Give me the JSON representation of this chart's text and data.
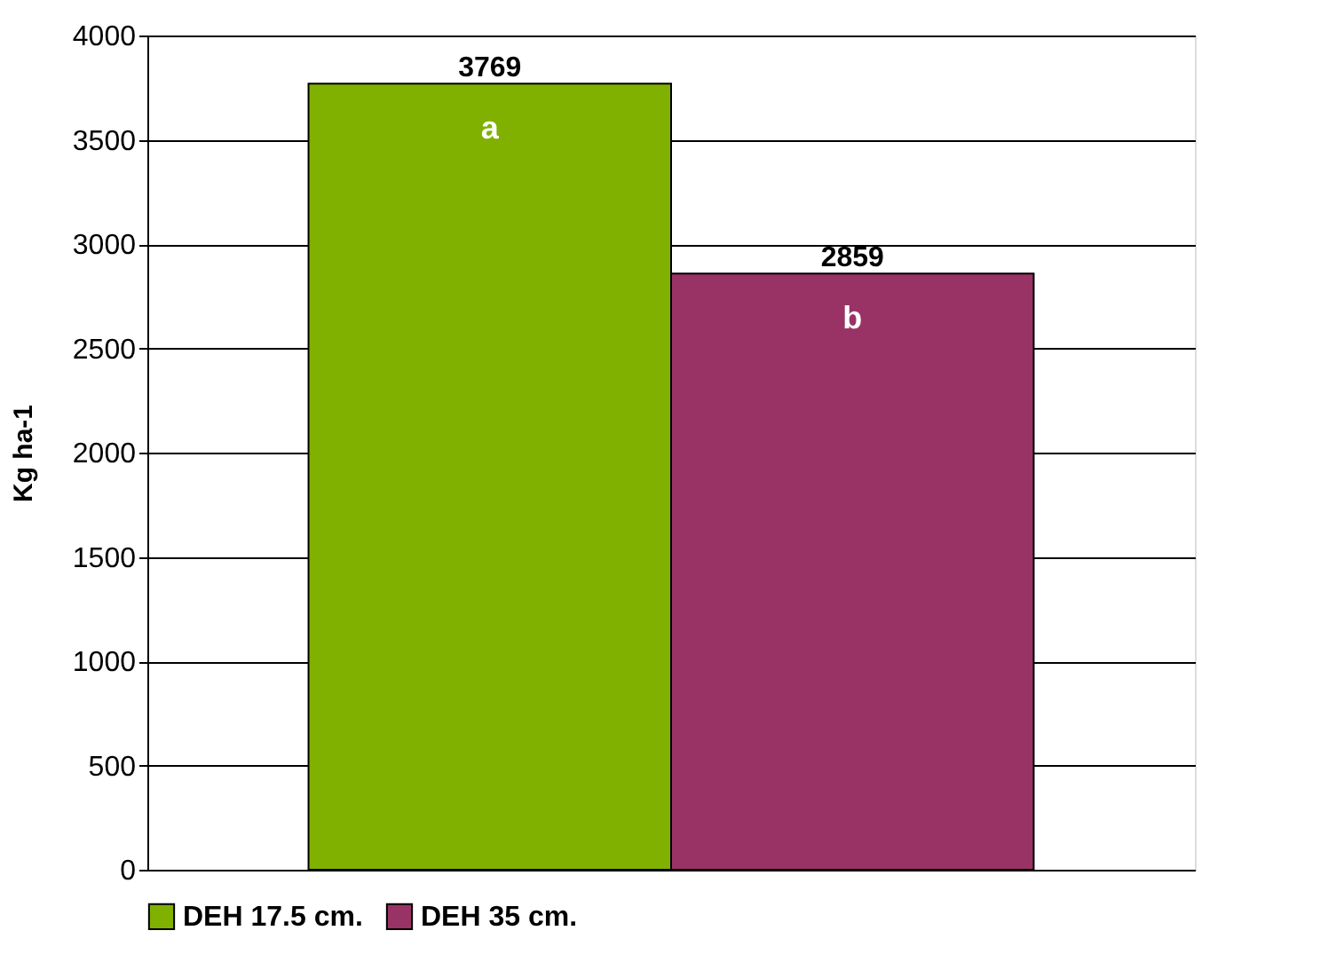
{
  "chart_data": {
    "type": "bar",
    "categories": [
      null
    ],
    "series": [
      {
        "name": "DEH 17.5 cm.",
        "color": "#80b000",
        "values": [
          3769
        ]
      },
      {
        "name": "DEH 35 cm.",
        "color": "#993366",
        "values": [
          2859
        ]
      }
    ],
    "ylabel": "Kg ha-1",
    "ylim": [
      0,
      4000
    ],
    "yticks": [
      0,
      500,
      1000,
      1500,
      2000,
      2500,
      3000,
      3500,
      4000
    ],
    "grid": "y",
    "legend": "bottom",
    "data_labels": true,
    "annotations": [
      "a",
      "b"
    ]
  }
}
